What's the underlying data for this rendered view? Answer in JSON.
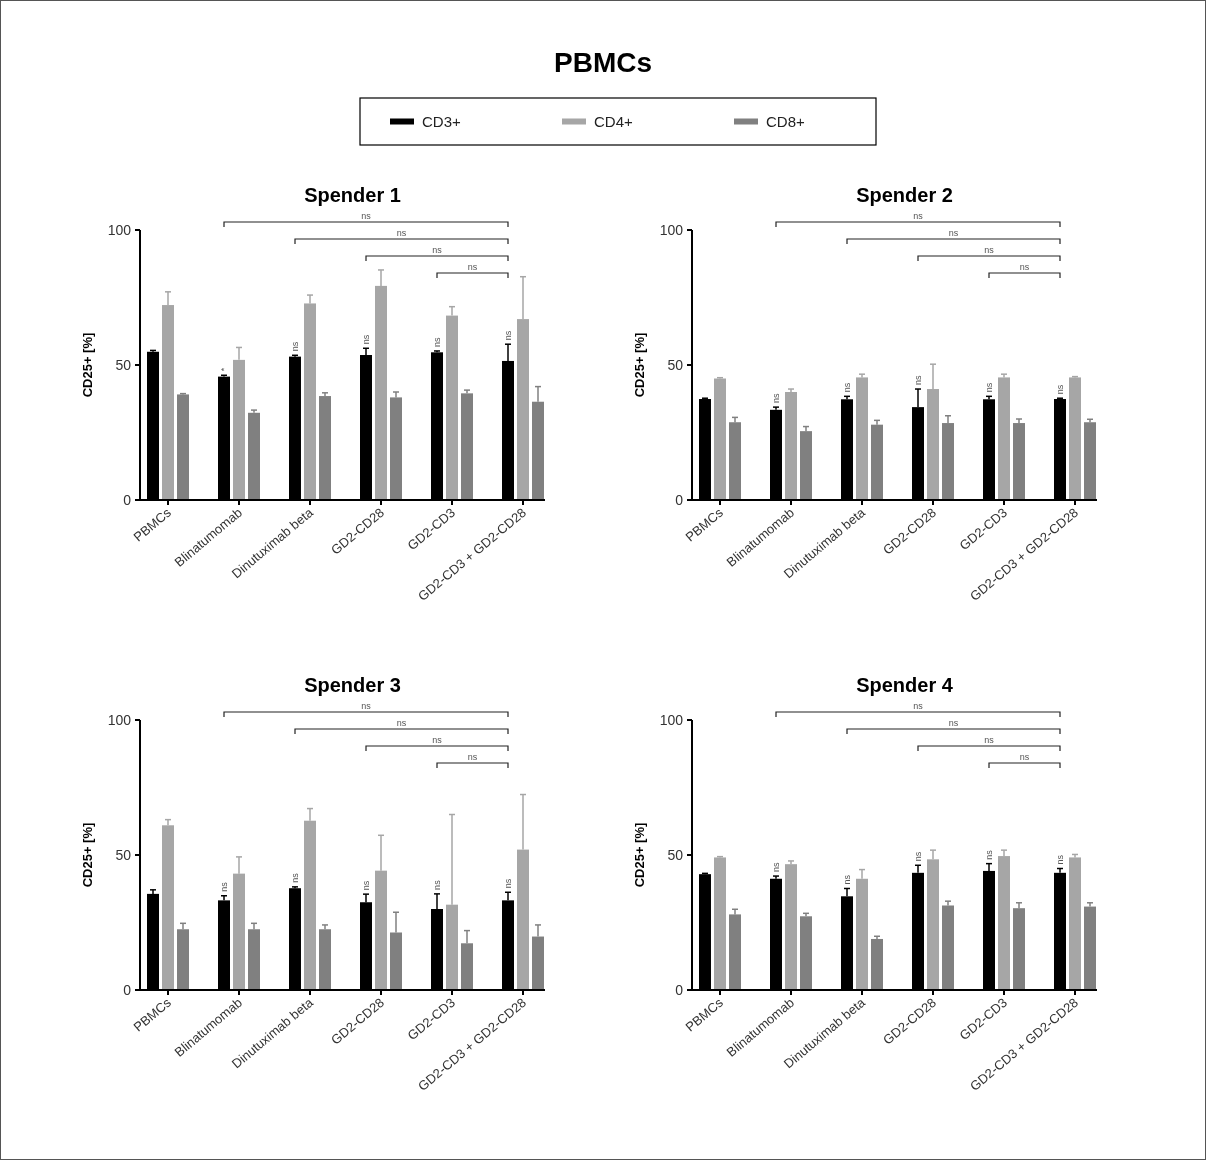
{
  "chart_data": [
    {
      "type": "other",
      "title": "PBMCs"
    },
    {
      "type": "bar",
      "title": "Spender 1",
      "ylabel": "CD25+ [%]",
      "categories": [
        "PBMCs",
        "Blinatumomab",
        "Dinutuximab beta",
        "GD2-CD28",
        "GD2-CD3",
        "GD2-CD3 + GD2-CD28"
      ],
      "ylim": [
        0,
        100
      ],
      "yticks": [
        0,
        50,
        100
      ],
      "legend": "top",
      "annotations": [
        "ns",
        "ns",
        "ns",
        "ns"
      ],
      "series": [
        {
          "name": "CD3+",
          "color": "#000000",
          "values": [
            54.9,
            45.7,
            53.1,
            53.7,
            54.7,
            51.5
          ],
          "errors": [
            [
              54.9,
              55.4
            ],
            [
              45.7,
              46.2
            ],
            [
              53.1,
              53.6
            ],
            [
              53.7,
              56.2
            ],
            [
              54.7,
              55.2
            ],
            [
              51.5,
              57.7
            ]
          ],
          "value_labels": [
            null,
            "*",
            "ns",
            "ns",
            "ns",
            "ns"
          ]
        },
        {
          "name": "CD4+",
          "color": "#a6a6a6",
          "values": [
            72.2,
            51.9,
            72.8,
            79.3,
            68.3,
            67.0
          ],
          "errors": [
            [
              72.2,
              77.1
            ],
            [
              51.9,
              56.5
            ],
            [
              72.8,
              75.9
            ],
            [
              79.3,
              85.2
            ],
            [
              68.3,
              71.6
            ],
            [
              67.0,
              82.7
            ]
          ]
        },
        {
          "name": "CD8+",
          "color": "#808080",
          "values": [
            39.1,
            32.3,
            38.5,
            38.0,
            39.5,
            36.4
          ],
          "errors": [
            [
              39.1,
              39.4
            ],
            [
              32.3,
              33.3
            ],
            [
              38.5,
              39.7
            ],
            [
              38.0,
              40.0
            ],
            [
              39.5,
              40.7
            ],
            [
              36.4,
              42.0
            ]
          ]
        }
      ]
    },
    {
      "type": "bar",
      "title": "Spender 2",
      "ylabel": "CD25+ [%]",
      "categories": [
        "PBMCs",
        "Blinatumomab",
        "Dinutuximab beta",
        "GD2-CD28",
        "GD2-CD3",
        "GD2-CD3 + GD2-CD28"
      ],
      "ylim": [
        0,
        100
      ],
      "yticks": [
        0,
        50,
        100
      ],
      "annotations": [
        "ns",
        "ns",
        "ns",
        "ns"
      ],
      "series": [
        {
          "color": "#000000",
          "values": [
            37.4,
            33.4,
            37.3,
            34.4,
            37.3,
            37.4
          ],
          "errors": [
            [
              37.4,
              37.7
            ],
            [
              33.4,
              34.4
            ],
            [
              37.3,
              38.4
            ],
            [
              34.4,
              41.1
            ],
            [
              37.3,
              38.4
            ],
            [
              37.4,
              37.7
            ]
          ],
          "value_labels": [
            null,
            "ns",
            "ns",
            "ns",
            "ns",
            "ns"
          ]
        },
        {
          "color": "#a6a6a6",
          "values": [
            45.0,
            40.0,
            45.4,
            41.1,
            45.4,
            45.4
          ],
          "errors": [
            [
              45.0,
              45.3
            ],
            [
              40.0,
              41.1
            ],
            [
              45.4,
              46.6
            ],
            [
              41.1,
              50.3
            ],
            [
              45.4,
              46.6
            ],
            [
              45.4,
              45.7
            ]
          ]
        },
        {
          "color": "#808080",
          "values": [
            28.8,
            25.5,
            27.9,
            28.5,
            28.5,
            28.8
          ],
          "errors": [
            [
              28.8,
              30.6
            ],
            [
              25.5,
              27.2
            ],
            [
              27.9,
              29.5
            ],
            [
              28.5,
              31.2
            ],
            [
              28.5,
              30.0
            ],
            [
              28.8,
              29.9
            ]
          ]
        }
      ]
    },
    {
      "type": "bar",
      "title": "Spender 3",
      "ylabel": "CD25+ [%]",
      "categories": [
        "PBMCs",
        "Blinatumomab",
        "Dinutuximab beta",
        "GD2-CD28",
        "GD2-CD3",
        "GD2-CD3 + GD2-CD28"
      ],
      "ylim": [
        0,
        100
      ],
      "yticks": [
        0,
        50,
        100
      ],
      "annotations": [
        "ns",
        "ns",
        "ns",
        "ns"
      ],
      "series": [
        {
          "color": "#000000",
          "values": [
            35.6,
            33.2,
            37.7,
            32.5,
            30.0,
            33.2
          ],
          "errors": [
            [
              35.6,
              37.1
            ],
            [
              33.2,
              34.9
            ],
            [
              37.7,
              38.2
            ],
            [
              32.5,
              35.5
            ],
            [
              30.0,
              35.6
            ],
            [
              33.2,
              36.2
            ]
          ],
          "value_labels": [
            null,
            "ns",
            "ns",
            "ns",
            "ns",
            "ns"
          ]
        },
        {
          "color": "#a6a6a6",
          "values": [
            61.0,
            43.1,
            62.7,
            44.2,
            31.6,
            52.0
          ],
          "errors": [
            [
              61.0,
              63.1
            ],
            [
              43.1,
              49.3
            ],
            [
              62.7,
              67.2
            ],
            [
              44.2,
              57.3
            ],
            [
              31.6,
              65.0
            ],
            [
              52.0,
              72.4
            ]
          ]
        },
        {
          "color": "#808080",
          "values": [
            22.5,
            22.5,
            22.5,
            21.3,
            17.3,
            19.8
          ],
          "errors": [
            [
              22.5,
              24.7
            ],
            [
              22.5,
              24.7
            ],
            [
              22.5,
              24.1
            ],
            [
              21.3,
              28.8
            ],
            [
              17.3,
              22.0
            ],
            [
              19.8,
              24.1
            ]
          ]
        }
      ]
    },
    {
      "type": "bar",
      "title": "Spender 4",
      "ylabel": "CD25+ [%]",
      "categories": [
        "PBMCs",
        "Blinatumomab",
        "Dinutuximab beta",
        "GD2-CD28",
        "GD2-CD3",
        "GD2-CD3 + GD2-CD28"
      ],
      "ylim": [
        0,
        100
      ],
      "yticks": [
        0,
        50,
        100
      ],
      "annotations": [
        "ns",
        "ns",
        "ns",
        "ns"
      ],
      "series": [
        {
          "color": "#000000",
          "values": [
            42.9,
            41.2,
            34.7,
            43.4,
            44.1,
            43.4
          ],
          "errors": [
            [
              42.9,
              43.2
            ],
            [
              41.2,
              42.2
            ],
            [
              34.7,
              37.6
            ],
            [
              43.4,
              46.2
            ],
            [
              44.1,
              46.8
            ],
            [
              43.4,
              45.0
            ]
          ],
          "value_labels": [
            null,
            "ns",
            "ns",
            "ns",
            "ns",
            "ns"
          ]
        },
        {
          "color": "#a6a6a6",
          "values": [
            49.1,
            46.6,
            41.2,
            48.4,
            49.6,
            49.1
          ],
          "errors": [
            [
              49.1,
              49.4
            ],
            [
              46.6,
              47.8
            ],
            [
              41.2,
              44.6
            ],
            [
              48.4,
              51.8
            ],
            [
              49.6,
              51.8
            ],
            [
              49.1,
              50.2
            ]
          ]
        },
        {
          "color": "#808080",
          "values": [
            28.0,
            27.3,
            18.9,
            31.3,
            30.3,
            30.9
          ],
          "errors": [
            [
              28.0,
              29.9
            ],
            [
              27.3,
              28.4
            ],
            [
              18.9,
              19.9
            ],
            [
              31.3,
              32.9
            ],
            [
              30.3,
              32.3
            ],
            [
              30.9,
              32.3
            ]
          ]
        }
      ]
    }
  ]
}
